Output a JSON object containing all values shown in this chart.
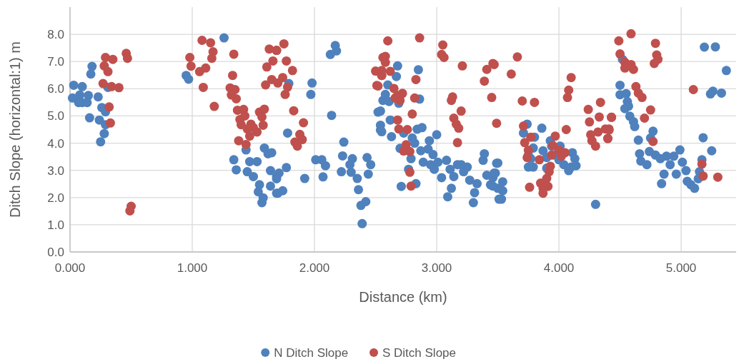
{
  "chart_data": {
    "type": "scatter",
    "xlabel": "Distance (km)",
    "ylabel": "Ditch Slope (horizontal:1) m",
    "xlim": [
      0,
      5.45
    ],
    "ylim": [
      0,
      9
    ],
    "xticks": [
      {
        "value": 0,
        "label": "0.000"
      },
      {
        "value": 1,
        "label": "1.000"
      },
      {
        "value": 2,
        "label": "2.000"
      },
      {
        "value": 3,
        "label": "3.000"
      },
      {
        "value": 4,
        "label": "4.000"
      },
      {
        "value": 5,
        "label": "5.000"
      }
    ],
    "yticks": [
      {
        "value": 0,
        "label": "0.0"
      },
      {
        "value": 1,
        "label": "1.0"
      },
      {
        "value": 2,
        "label": "2.0"
      },
      {
        "value": 3,
        "label": "3.0"
      },
      {
        "value": 4,
        "label": "4.0"
      },
      {
        "value": 5,
        "label": "5.0"
      },
      {
        "value": 6,
        "label": "6.0"
      },
      {
        "value": 7,
        "label": "7.0"
      },
      {
        "value": 8,
        "label": "8.0"
      }
    ],
    "grid": true,
    "legend": "bottom",
    "marker": "circle",
    "series": [
      {
        "name": "N Ditch Slope",
        "color": "#4f81bd",
        "x": [
          0.03,
          0.1,
          0.18,
          0.17,
          0.02,
          0.08,
          0.15,
          0.1,
          0.14,
          0.23,
          0.31,
          0.26,
          0.29,
          0.16,
          0.24,
          0.29,
          0.28,
          0.25,
          0.07,
          0.95,
          0.97,
          1.26,
          1.44,
          1.34,
          1.36,
          1.47,
          1.53,
          1.45,
          1.5,
          1.59,
          1.62,
          1.55,
          1.54,
          1.58,
          1.57,
          1.64,
          1.64,
          1.69,
          1.69,
          1.79,
          1.98,
          1.97,
          1.78,
          1.77,
          1.92,
          1.69,
          1.74,
          1.7,
          1.65,
          1.71,
          2.17,
          2.18,
          2.13,
          2.14,
          2.01,
          2.06,
          2.09,
          2.07,
          2.24,
          2.23,
          2.29,
          2.31,
          2.22,
          2.3,
          2.35,
          2.36,
          2.38,
          2.42,
          2.39,
          2.43,
          2.46,
          2.44,
          2.52,
          2.54,
          2.55,
          2.68,
          2.85,
          2.67,
          2.6,
          2.58,
          2.56,
          2.61,
          2.69,
          2.86,
          2.54,
          2.62,
          2.54,
          2.63,
          2.73,
          2.84,
          2.88,
          2.8,
          2.82,
          2.7,
          2.79,
          2.77,
          2.83,
          2.71,
          2.87,
          2.94,
          3.0,
          2.93,
          2.97,
          2.89,
          2.95,
          3.01,
          2.98,
          3.04,
          3.08,
          3.11,
          3.12,
          3.09,
          3.14,
          3.17,
          3.2,
          3.25,
          3.22,
          3.27,
          3.33,
          3.31,
          3.3,
          3.39,
          3.38,
          3.41,
          3.44,
          3.46,
          3.49,
          3.47,
          3.5,
          3.51,
          3.5,
          3.48,
          3.54,
          3.54,
          3.53,
          3.46,
          3.74,
          3.71,
          3.8,
          3.86,
          3.79,
          3.75,
          3.77,
          3.75,
          3.79,
          3.87,
          3.9,
          3.9,
          3.93,
          3.94,
          4.01,
          3.97,
          4.0,
          4.04,
          4.08,
          4.11,
          4.13,
          4.14,
          4.1,
          4.3,
          4.52,
          5.19,
          5.28,
          5.37,
          5.24,
          5.26,
          5.33,
          4.5,
          4.5,
          4.55,
          4.56,
          4.57,
          4.54,
          4.58,
          4.61,
          4.62,
          4.65,
          4.77,
          4.75,
          4.66,
          4.67,
          4.72,
          4.74,
          4.79,
          4.83,
          4.88,
          4.94,
          4.91,
          4.86,
          4.84,
          4.99,
          5.01,
          4.96,
          5.04,
          5.05,
          5.08,
          5.11,
          5.14,
          5.15,
          5.17,
          5.18,
          5.25
        ],
        "values": [
          6.13,
          6.08,
          6.82,
          6.54,
          5.66,
          5.77,
          5.75,
          5.49,
          5.49,
          5.7,
          6.05,
          5.31,
          5.15,
          4.93,
          4.85,
          4.68,
          4.35,
          4.05,
          5.49,
          6.49,
          6.35,
          7.87,
          3.75,
          3.39,
          3.02,
          3.32,
          3.32,
          2.95,
          2.77,
          3.82,
          3.61,
          2.47,
          2.21,
          1.99,
          1.81,
          2.99,
          2.42,
          2.16,
          2.77,
          6.19,
          6.21,
          5.79,
          4.37,
          3.1,
          2.7,
          2.69,
          2.25,
          2.16,
          3.65,
          2.9,
          7.59,
          7.39,
          7.26,
          5.02,
          3.39,
          3.39,
          3.17,
          2.76,
          4.04,
          3.53,
          3.21,
          3.43,
          2.95,
          2.93,
          2.7,
          2.29,
          1.71,
          1.85,
          1.04,
          3.47,
          3.21,
          2.86,
          5.14,
          4.66,
          4.42,
          6.84,
          6.7,
          6.45,
          6.14,
          5.79,
          5.57,
          5.53,
          5.47,
          5.62,
          5.18,
          4.85,
          4.48,
          4.24,
          4.37,
          4.51,
          4.57,
          4.19,
          4.0,
          3.81,
          3.43,
          3.04,
          2.51,
          2.41,
          3.72,
          4.09,
          4.31,
          3.78,
          3.58,
          3.3,
          3.21,
          3.3,
          3.04,
          2.73,
          3.37,
          3.04,
          2.34,
          2.03,
          2.77,
          3.21,
          3.21,
          3.12,
          2.95,
          2.64,
          2.51,
          2.18,
          1.81,
          3.61,
          3.37,
          2.82,
          2.47,
          2.73,
          3.26,
          2.9,
          2.34,
          1.94,
          3.27,
          2.9,
          2.58,
          2.25,
          1.94,
          2.42,
          4.7,
          4.37,
          4.22,
          4.55,
          3.82,
          3.56,
          3.43,
          3.12,
          3.12,
          3.72,
          3.47,
          3.08,
          4.09,
          3.89,
          3.89,
          3.56,
          3.39,
          3.21,
          2.99,
          3.65,
          3.43,
          3.17,
          3.12,
          1.75,
          7.08,
          7.53,
          7.54,
          6.67,
          5.81,
          5.91,
          5.84,
          6.13,
          5.78,
          5.82,
          5.53,
          5.36,
          5.27,
          4.99,
          4.79,
          4.61,
          4.11,
          4.44,
          4.19,
          3.61,
          3.34,
          3.21,
          3.69,
          3.56,
          3.43,
          3.52,
          3.52,
          3.21,
          2.86,
          2.51,
          3.75,
          3.3,
          2.86,
          2.99,
          2.6,
          2.47,
          2.34,
          2.69,
          2.95,
          3.39,
          4.2,
          3.72
        ]
      },
      {
        "name": "S Ditch Slope",
        "color": "#c0504d",
        "x": [
          0.29,
          0.35,
          0.28,
          0.31,
          0.46,
          0.47,
          0.27,
          0.34,
          0.4,
          0.32,
          0.33,
          0.5,
          0.49,
          1.08,
          1.15,
          1.17,
          1.16,
          0.98,
          0.99,
          1.06,
          1.11,
          1.09,
          1.18,
          1.34,
          1.33,
          1.31,
          1.35,
          1.32,
          1.36,
          1.37,
          1.42,
          1.39,
          1.43,
          1.4,
          1.48,
          1.45,
          1.5,
          1.53,
          1.47,
          1.38,
          1.44,
          1.55,
          1.59,
          1.57,
          1.58,
          1.63,
          1.69,
          1.66,
          1.61,
          1.65,
          1.6,
          1.75,
          1.69,
          1.77,
          1.82,
          1.74,
          1.7,
          1.78,
          1.76,
          1.83,
          1.91,
          1.88,
          1.9,
          1.84,
          1.86,
          2.56,
          2.5,
          2.55,
          2.51,
          2.6,
          2.86,
          2.58,
          2.58,
          2.55,
          2.55,
          2.62,
          2.52,
          2.83,
          2.65,
          2.68,
          2.72,
          2.66,
          2.7,
          2.82,
          2.8,
          2.68,
          2.69,
          2.76,
          2.75,
          2.73,
          2.78,
          2.78,
          2.79,
          3.05,
          3.04,
          3.06,
          3.21,
          3.41,
          3.46,
          3.39,
          3.45,
          3.12,
          3.13,
          3.2,
          3.14,
          3.16,
          3.18,
          3.17,
          3.49,
          3.66,
          3.47,
          3.61,
          3.7,
          3.8,
          3.71,
          3.77,
          3.72,
          3.75,
          3.74,
          3.76,
          3.84,
          3.93,
          3.92,
          3.9,
          3.85,
          3.87,
          3.87,
          3.91,
          3.97,
          3.95,
          3.94,
          4.0,
          4.02,
          4.05,
          4.06,
          4.1,
          4.08,
          4.07,
          4.24,
          4.34,
          4.33,
          4.25,
          4.43,
          4.41,
          4.26,
          4.32,
          4.27,
          4.3,
          4.4,
          4.38,
          4.59,
          4.49,
          4.79,
          4.8,
          4.81,
          4.78,
          4.5,
          4.54,
          4.59,
          4.61,
          4.54,
          4.63,
          4.65,
          4.68,
          4.75,
          4.7,
          4.43,
          4.41,
          4.4,
          4.77,
          5.1,
          5.17,
          5.18,
          5.3
        ],
        "values": [
          7.15,
          7.08,
          6.84,
          6.63,
          7.3,
          7.12,
          6.19,
          6.08,
          6.04,
          5.33,
          4.74,
          1.68,
          1.51,
          7.78,
          7.69,
          7.36,
          7.12,
          7.15,
          6.83,
          6.63,
          6.76,
          6.05,
          5.35,
          7.27,
          6.49,
          6.03,
          5.97,
          5.77,
          5.63,
          5.21,
          5.24,
          4.87,
          5.0,
          4.68,
          4.7,
          4.52,
          4.57,
          4.41,
          4.26,
          4.09,
          3.95,
          5.14,
          5.25,
          4.96,
          4.66,
          7.46,
          7.41,
          7.02,
          6.8,
          6.34,
          6.14,
          7.65,
          7.41,
          7.02,
          6.67,
          6.41,
          6.21,
          6.06,
          5.79,
          5.19,
          4.75,
          4.32,
          4.13,
          4.04,
          3.89,
          7.15,
          6.65,
          6.49,
          6.12,
          7.76,
          7.87,
          7.19,
          6.97,
          6.67,
          6.49,
          6.64,
          6.1,
          6.34,
          6.01,
          5.75,
          5.83,
          5.66,
          5.57,
          5.66,
          5.07,
          4.85,
          4.52,
          4.5,
          3.94,
          3.71,
          3.69,
          2.93,
          2.42,
          7.61,
          7.26,
          7.15,
          6.84,
          6.71,
          6.93,
          6.28,
          5.68,
          5.57,
          5.7,
          5.18,
          4.92,
          4.7,
          4.55,
          4.02,
          4.73,
          7.17,
          6.89,
          6.54,
          5.55,
          5.5,
          4.63,
          4.22,
          4.02,
          3.74,
          3.47,
          2.38,
          3.39,
          3.15,
          2.95,
          2.7,
          2.53,
          2.34,
          2.16,
          2.41,
          4.26,
          3.91,
          3.56,
          3.74,
          3.52,
          3.65,
          4.5,
          6.41,
          5.95,
          5.68,
          5.24,
          5.5,
          4.96,
          4.78,
          4.95,
          4.52,
          4.31,
          4.41,
          4.09,
          3.89,
          4.17,
          4.52,
          8.02,
          7.76,
          7.67,
          7.24,
          7.08,
          6.93,
          7.28,
          6.97,
          6.89,
          6.71,
          6.76,
          6.08,
          5.84,
          5.68,
          5.22,
          4.92,
          4.95,
          4.48,
          4.17,
          4.06,
          5.97,
          3.23,
          2.79,
          2.75
        ]
      }
    ]
  }
}
